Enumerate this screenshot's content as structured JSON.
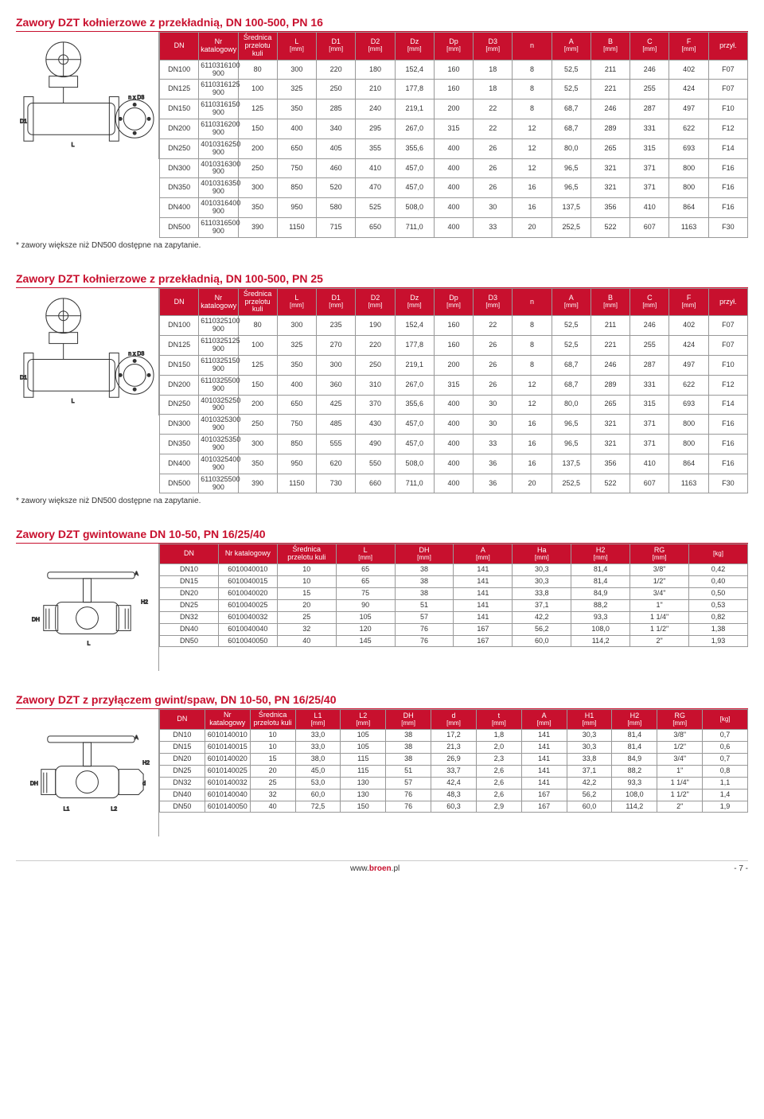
{
  "sections": [
    {
      "title": "Zawory DZT kołnierzowe z przekładnią, DN 100-500, PN 16",
      "note": "* zawory większe niż DN500 dostępne na zapytanie.",
      "diagram": "flange",
      "columns": [
        "DN",
        "Nr katalogowy",
        "Średnica przelotu kuli",
        "L [mm]",
        "D1 [mm]",
        "D2 [mm]",
        "Dz [mm]",
        "Dp [mm]",
        "D3 [mm]",
        "n",
        "A [mm]",
        "B [mm]",
        "C [mm]",
        "F [mm]",
        "przył."
      ],
      "rows": [
        [
          "DN100",
          "6110316100 900",
          "80",
          "300",
          "220",
          "180",
          "152,4",
          "160",
          "18",
          "8",
          "52,5",
          "211",
          "246",
          "402",
          "F07"
        ],
        [
          "DN125",
          "6110316125 900",
          "100",
          "325",
          "250",
          "210",
          "177,8",
          "160",
          "18",
          "8",
          "52,5",
          "221",
          "255",
          "424",
          "F07"
        ],
        [
          "DN150",
          "6110316150 900",
          "125",
          "350",
          "285",
          "240",
          "219,1",
          "200",
          "22",
          "8",
          "68,7",
          "246",
          "287",
          "497",
          "F10"
        ],
        [
          "DN200",
          "6110316200 900",
          "150",
          "400",
          "340",
          "295",
          "267,0",
          "315",
          "22",
          "12",
          "68,7",
          "289",
          "331",
          "622",
          "F12"
        ],
        [
          "DN250",
          "4010316250 900",
          "200",
          "650",
          "405",
          "355",
          "355,6",
          "400",
          "26",
          "12",
          "80,0",
          "265",
          "315",
          "693",
          "F14"
        ],
        [
          "DN300",
          "4010316300 900",
          "250",
          "750",
          "460",
          "410",
          "457,0",
          "400",
          "26",
          "12",
          "96,5",
          "321",
          "371",
          "800",
          "F16"
        ],
        [
          "DN350",
          "4010316350 900",
          "300",
          "850",
          "520",
          "470",
          "457,0",
          "400",
          "26",
          "16",
          "96,5",
          "321",
          "371",
          "800",
          "F16"
        ],
        [
          "DN400",
          "4010316400 900",
          "350",
          "950",
          "580",
          "525",
          "508,0",
          "400",
          "30",
          "16",
          "137,5",
          "356",
          "410",
          "864",
          "F16"
        ],
        [
          "DN500",
          "6110316500 900",
          "390",
          "1150",
          "715",
          "650",
          "711,0",
          "400",
          "33",
          "20",
          "252,5",
          "522",
          "607",
          "1163",
          "F30"
        ]
      ]
    },
    {
      "title": "Zawory DZT kołnierzowe z przekładnią, DN 100-500, PN 25",
      "note": "* zawory większe niż DN500 dostępne na zapytanie.",
      "diagram": "flange",
      "columns": [
        "DN",
        "Nr katalogowy",
        "Średnica przelotu kuli",
        "L [mm]",
        "D1 [mm]",
        "D2 [mm]",
        "Dz [mm]",
        "Dp [mm]",
        "D3 [mm]",
        "n",
        "A [mm]",
        "B [mm]",
        "C [mm]",
        "F [mm]",
        "przył."
      ],
      "rows": [
        [
          "DN100",
          "6110325100 900",
          "80",
          "300",
          "235",
          "190",
          "152,4",
          "160",
          "22",
          "8",
          "52,5",
          "211",
          "246",
          "402",
          "F07"
        ],
        [
          "DN125",
          "6110325125 900",
          "100",
          "325",
          "270",
          "220",
          "177,8",
          "160",
          "26",
          "8",
          "52,5",
          "221",
          "255",
          "424",
          "F07"
        ],
        [
          "DN150",
          "6110325150 900",
          "125",
          "350",
          "300",
          "250",
          "219,1",
          "200",
          "26",
          "8",
          "68,7",
          "246",
          "287",
          "497",
          "F10"
        ],
        [
          "DN200",
          "6110325500 900",
          "150",
          "400",
          "360",
          "310",
          "267,0",
          "315",
          "26",
          "12",
          "68,7",
          "289",
          "331",
          "622",
          "F12"
        ],
        [
          "DN250",
          "4010325250 900",
          "200",
          "650",
          "425",
          "370",
          "355,6",
          "400",
          "30",
          "12",
          "80,0",
          "265",
          "315",
          "693",
          "F14"
        ],
        [
          "DN300",
          "4010325300 900",
          "250",
          "750",
          "485",
          "430",
          "457,0",
          "400",
          "30",
          "16",
          "96,5",
          "321",
          "371",
          "800",
          "F16"
        ],
        [
          "DN350",
          "4010325350 900",
          "300",
          "850",
          "555",
          "490",
          "457,0",
          "400",
          "33",
          "16",
          "96,5",
          "321",
          "371",
          "800",
          "F16"
        ],
        [
          "DN400",
          "4010325400 900",
          "350",
          "950",
          "620",
          "550",
          "508,0",
          "400",
          "36",
          "16",
          "137,5",
          "356",
          "410",
          "864",
          "F16"
        ],
        [
          "DN500",
          "6110325500 900",
          "390",
          "1150",
          "730",
          "660",
          "711,0",
          "400",
          "36",
          "20",
          "252,5",
          "522",
          "607",
          "1163",
          "F30"
        ]
      ]
    },
    {
      "title": "Zawory DZT gwintowane DN 10-50, PN 16/25/40",
      "note": "",
      "diagram": "threaded",
      "columns": [
        "DN",
        "Nr katalogowy",
        "Średnica przelotu kuli",
        "L [mm]",
        "DH [mm]",
        "A [mm]",
        "Ha [mm]",
        "H2 [mm]",
        "RG [mm]",
        "[kg]"
      ],
      "rows": [
        [
          "DN10",
          "6010040010",
          "10",
          "65",
          "38",
          "141",
          "30,3",
          "81,4",
          "3/8\"",
          "0,42"
        ],
        [
          "DN15",
          "6010040015",
          "10",
          "65",
          "38",
          "141",
          "30,3",
          "81,4",
          "1/2\"",
          "0,40"
        ],
        [
          "DN20",
          "6010040020",
          "15",
          "75",
          "38",
          "141",
          "33,8",
          "84,9",
          "3/4\"",
          "0,50"
        ],
        [
          "DN25",
          "6010040025",
          "20",
          "90",
          "51",
          "141",
          "37,1",
          "88,2",
          "1\"",
          "0,53"
        ],
        [
          "DN32",
          "6010040032",
          "25",
          "105",
          "57",
          "141",
          "42,2",
          "93,3",
          "1 1/4\"",
          "0,82"
        ],
        [
          "DN40",
          "6010040040",
          "32",
          "120",
          "76",
          "167",
          "56,2",
          "108,0",
          "1 1/2\"",
          "1,38"
        ],
        [
          "DN50",
          "6010040050",
          "40",
          "145",
          "76",
          "167",
          "60,0",
          "114,2",
          "2\"",
          "1,93"
        ]
      ]
    },
    {
      "title": "Zawory DZT z przyłączem gwint/spaw, DN 10-50, PN 16/25/40",
      "note": "",
      "diagram": "threaded-weld",
      "columns": [
        "DN",
        "Nr katalogowy",
        "Średnica przelotu kuli",
        "L1 [mm]",
        "L2 [mm]",
        "DH [mm]",
        "d [mm]",
        "t [mm]",
        "A [mm]",
        "H1 [mm]",
        "H2 [mm]",
        "RG [mm]",
        "[kg]"
      ],
      "rows": [
        [
          "DN10",
          "6010140010",
          "10",
          "33,0",
          "105",
          "38",
          "17,2",
          "1,8",
          "141",
          "30,3",
          "81,4",
          "3/8\"",
          "0,7"
        ],
        [
          "DN15",
          "6010140015",
          "10",
          "33,0",
          "105",
          "38",
          "21,3",
          "2,0",
          "141",
          "30,3",
          "81,4",
          "1/2\"",
          "0,6"
        ],
        [
          "DN20",
          "6010140020",
          "15",
          "38,0",
          "115",
          "38",
          "26,9",
          "2,3",
          "141",
          "33,8",
          "84,9",
          "3/4\"",
          "0,7"
        ],
        [
          "DN25",
          "6010140025",
          "20",
          "45,0",
          "115",
          "51",
          "33,7",
          "2,6",
          "141",
          "37,1",
          "88,2",
          "1\"",
          "0,8"
        ],
        [
          "DN32",
          "6010140032",
          "25",
          "53,0",
          "130",
          "57",
          "42,4",
          "2,6",
          "141",
          "42,2",
          "93,3",
          "1 1/4\"",
          "1,1"
        ],
        [
          "DN40",
          "6010140040",
          "32",
          "60,0",
          "130",
          "76",
          "48,3",
          "2,6",
          "167",
          "56,2",
          "108,0",
          "1 1/2\"",
          "1,4"
        ],
        [
          "DN50",
          "6010140050",
          "40",
          "72,5",
          "150",
          "76",
          "60,3",
          "2,9",
          "167",
          "60,0",
          "114,2",
          "2\"",
          "1,9"
        ]
      ]
    }
  ],
  "footer": {
    "url_pre": "www.",
    "url_bold": "broen",
    "url_post": ".pl",
    "page": "- 7 -"
  }
}
